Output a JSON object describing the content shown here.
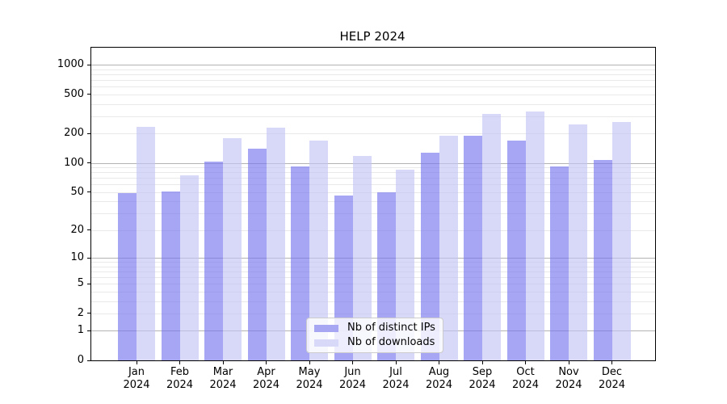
{
  "chart_data": {
    "type": "bar",
    "title": "HELP 2024",
    "categories": [
      "Jan",
      "Feb",
      "Mar",
      "Apr",
      "May",
      "Jun",
      "Jul",
      "Aug",
      "Sep",
      "Oct",
      "Nov",
      "Dec"
    ],
    "x_tick_year": "2024",
    "series": [
      {
        "name": "Nb of distinct IPs",
        "color": "#a6a6f2",
        "fill": "rgba(118,118,240,0.65)",
        "values": [
          49,
          51,
          103,
          141,
          92,
          46,
          50,
          128,
          191,
          168,
          93,
          108
        ]
      },
      {
        "name": "Nb of downloads",
        "color": "#d8d8f8",
        "fill": "rgba(195,195,244,0.65)",
        "values": [
          232,
          75,
          179,
          231,
          168,
          118,
          85,
          190,
          317,
          333,
          249,
          262
        ]
      }
    ],
    "yscale": "log1p",
    "ylim": [
      0,
      1500
    ],
    "y_ticks": [
      0,
      1,
      2,
      5,
      10,
      20,
      50,
      100,
      200,
      500,
      1000
    ],
    "major_gridlines": [
      1,
      10,
      100,
      1000
    ],
    "minor_gridlines": [
      2,
      3,
      4,
      5,
      6,
      7,
      8,
      9,
      20,
      30,
      40,
      50,
      60,
      70,
      80,
      90,
      200,
      300,
      400,
      500,
      600,
      700,
      800,
      900
    ],
    "grid": true,
    "legend_position": "lower center",
    "colors": {
      "major_grid": "#b3b3b3",
      "minor_grid": "#e9e9e9",
      "axis": "#000000",
      "text": "#000000"
    }
  }
}
